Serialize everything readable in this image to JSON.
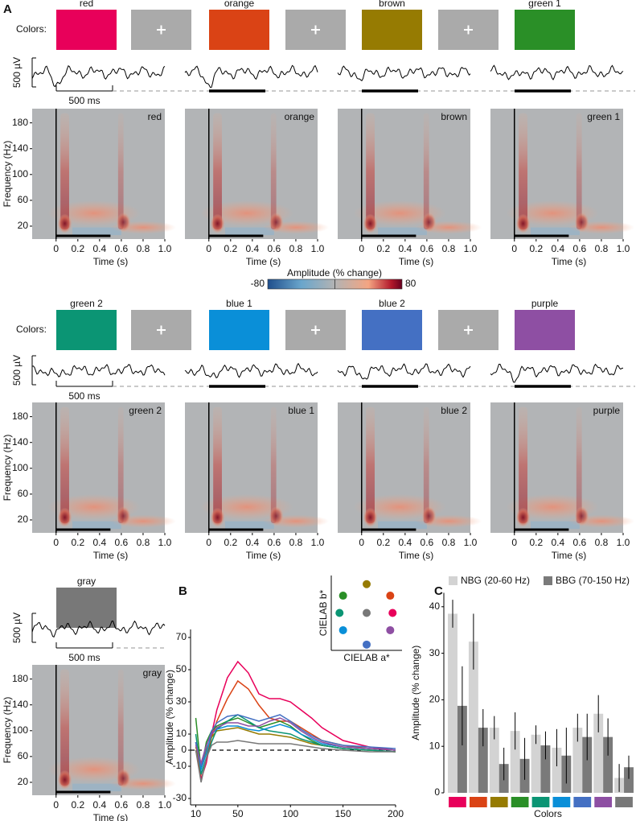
{
  "panel_labels": [
    "A",
    "B",
    "C"
  ],
  "stimuli": {
    "label": "Colors:",
    "swatches": [
      {
        "name": "red",
        "color": "#e8005a"
      },
      {
        "name": "orange",
        "color": "#da4315"
      },
      {
        "name": "brown",
        "color": "#967b02"
      },
      {
        "name": "green 1",
        "color": "#2a8f27"
      },
      {
        "name": "green 2",
        "color": "#0b9574"
      },
      {
        "name": "blue 1",
        "color": "#0a8fd8"
      },
      {
        "name": "blue 2",
        "color": "#4470c3"
      },
      {
        "name": "purple",
        "color": "#8e4fa3"
      },
      {
        "name": "gray",
        "color": "#787878"
      }
    ]
  },
  "scale_bars": {
    "voltage": "500 µV",
    "time": "500 ms"
  },
  "spectrograms": {
    "xlabel": "Time (s)",
    "ylabel": "Frequency (Hz)",
    "xlim": [
      -0.22,
      1.0
    ],
    "ylim": [
      0,
      202
    ],
    "xticks": [
      0,
      0.2,
      0.4,
      0.6,
      0.8,
      {
        "value": 1,
        "label": "1.0"
      }
    ],
    "yticks": [
      20,
      60,
      100,
      140,
      180
    ],
    "panels": [
      "red",
      "orange",
      "brown",
      "green 1",
      "green 2",
      "blue 1",
      "blue 2",
      "purple",
      "gray"
    ]
  },
  "colorbar": {
    "label": "Amplitude (% change)",
    "lim": [
      -80,
      80
    ],
    "ticks": [
      -80,
      80
    ]
  },
  "chart_data": [
    {
      "type": "line",
      "xlabel": "Frequency (Hz)",
      "ylabel": "Amplitude (% change)",
      "xlim": [
        5,
        200
      ],
      "ylim": [
        -34,
        75
      ],
      "xticks": [
        10,
        50,
        100,
        150,
        200
      ],
      "yticks": [
        -30,
        -10,
        0,
        10,
        30,
        50,
        70
      ],
      "x": [
        10,
        15,
        20,
        25,
        30,
        40,
        50,
        60,
        70,
        80,
        90,
        100,
        110,
        120,
        130,
        150,
        175,
        200
      ],
      "series": [
        {
          "color": "#e8005a",
          "values": [
            5,
            -18,
            -8,
            10,
            25,
            45,
            55,
            48,
            35,
            32,
            32,
            30,
            25,
            20,
            14,
            6,
            2,
            0
          ]
        },
        {
          "color": "#da4315",
          "values": [
            0,
            -15,
            -5,
            8,
            18,
            32,
            43,
            38,
            28,
            20,
            18,
            18,
            14,
            10,
            6,
            3,
            1,
            0
          ]
        },
        {
          "color": "#967b02",
          "values": [
            2,
            -10,
            0,
            8,
            12,
            13,
            14,
            12,
            10,
            10,
            9,
            8,
            6,
            4,
            3,
            1,
            0,
            -1
          ]
        },
        {
          "color": "#2a8f27",
          "values": [
            20,
            -12,
            5,
            12,
            15,
            18,
            20,
            17,
            14,
            16,
            18,
            15,
            10,
            6,
            3,
            1,
            0,
            -1
          ]
        },
        {
          "color": "#0b9574",
          "values": [
            10,
            -15,
            -5,
            5,
            13,
            18,
            22,
            18,
            14,
            12,
            11,
            10,
            7,
            5,
            3,
            1,
            0,
            -1
          ]
        },
        {
          "color": "#0a8fd8",
          "values": [
            5,
            -12,
            -2,
            10,
            13,
            15,
            15,
            13,
            12,
            14,
            16,
            14,
            10,
            7,
            4,
            2,
            1,
            0
          ]
        },
        {
          "color": "#4470c3",
          "values": [
            5,
            -10,
            2,
            12,
            17,
            21,
            22,
            20,
            18,
            20,
            22,
            18,
            13,
            9,
            6,
            3,
            2,
            1
          ]
        },
        {
          "color": "#8e4fa3",
          "values": [
            3,
            -8,
            3,
            10,
            14,
            17,
            17,
            15,
            15,
            18,
            20,
            17,
            12,
            8,
            5,
            2,
            1,
            0
          ]
        },
        {
          "color": "#787878",
          "values": [
            0,
            -20,
            -5,
            3,
            5,
            5,
            6,
            5,
            4,
            4,
            4,
            4,
            3,
            2,
            1,
            0,
            -1,
            -1
          ]
        }
      ]
    },
    {
      "type": "scatter",
      "xlabel": "CIELAB a*",
      "ylabel": "CIELAB b*",
      "xlim": [
        -1.5,
        1.5
      ],
      "ylim": [
        -1.3,
        1.3
      ],
      "x": [
        1.1,
        1,
        0,
        -1,
        -1.15,
        -1,
        0,
        1,
        0
      ],
      "y": [
        0,
        0.6,
        1,
        0.6,
        0,
        -0.6,
        -1.1,
        -0.6,
        0
      ],
      "colors": [
        "#e8005a",
        "#da4315",
        "#967b02",
        "#2a8f27",
        "#0b9574",
        "#0a8fd8",
        "#4470c3",
        "#8e4fa3",
        "#787878"
      ]
    },
    {
      "type": "bar",
      "xlabel": "Colors",
      "ylabel": "Amplitude (% change)",
      "ylim": [
        0,
        43
      ],
      "yticks": [
        0,
        10,
        20,
        30,
        40
      ],
      "categories": [
        null,
        null,
        null,
        null,
        null,
        null,
        null,
        null,
        null
      ],
      "category_colors": [
        "#e8005a",
        "#da4315",
        "#967b02",
        "#2a8f27",
        "#0b9574",
        "#0a8fd8",
        "#4470c3",
        "#8e4fa3",
        "#787878"
      ],
      "series": [
        {
          "name": "NBG (20-60 Hz)",
          "color": "#d3d3d3",
          "values": [
            38.5,
            32.5,
            14,
            13.3,
            12.5,
            9.7,
            14,
            17,
            3.2
          ],
          "errors": [
            3,
            6,
            2.5,
            4,
            2,
            4,
            3,
            4,
            3
          ]
        },
        {
          "name": "BBG (70-150 Hz)",
          "color": "#7a7a7a",
          "values": [
            18.7,
            14,
            6.2,
            7.3,
            10.2,
            8,
            12,
            12,
            5.5
          ],
          "errors": [
            8.5,
            4,
            3.5,
            4.5,
            3,
            6,
            5,
            4,
            2.5
          ]
        }
      ]
    }
  ]
}
